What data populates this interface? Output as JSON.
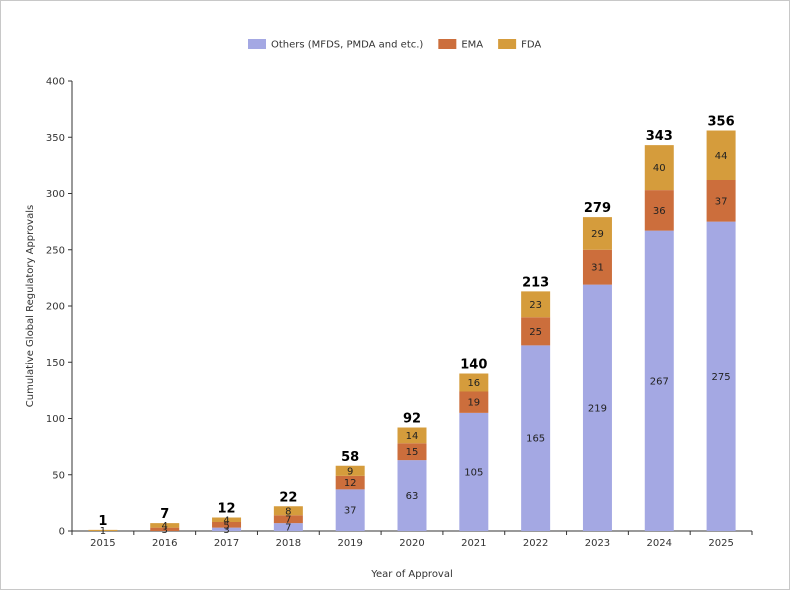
{
  "chart_data": {
    "type": "bar",
    "stacked": true,
    "categories": [
      "2015",
      "2016",
      "2017",
      "2018",
      "2019",
      "2020",
      "2021",
      "2022",
      "2023",
      "2024",
      "2025"
    ],
    "series": [
      {
        "name": "Others (MFDS, PMDA and etc.)",
        "color": "#a4a8e3",
        "values": [
          0,
          0,
          3,
          7,
          37,
          63,
          105,
          165,
          219,
          267,
          275
        ]
      },
      {
        "name": "EMA",
        "color": "#cc6e3c",
        "values": [
          0,
          3,
          5,
          7,
          12,
          15,
          19,
          25,
          31,
          36,
          37
        ]
      },
      {
        "name": "FDA",
        "color": "#d59c3c",
        "values": [
          1,
          4,
          4,
          8,
          9,
          14,
          16,
          23,
          29,
          40,
          44
        ]
      }
    ],
    "totals": [
      1,
      7,
      12,
      22,
      58,
      92,
      140,
      213,
      279,
      343,
      356
    ],
    "xlabel": "Year of Approval",
    "ylabel": "Cumulative Global Regulatory Approvals",
    "ylim": [
      0,
      400
    ],
    "yticks": [
      0,
      50,
      100,
      150,
      200,
      250,
      300,
      350,
      400
    ],
    "legend": "top-center",
    "grid": false
  }
}
